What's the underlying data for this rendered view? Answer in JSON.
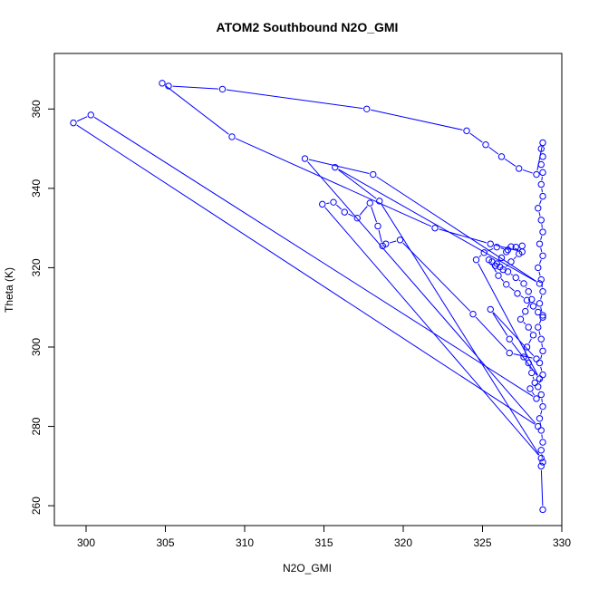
{
  "chart_data": {
    "type": "line",
    "title": "ATOM2 Southbound N2O_GMI",
    "xlabel": "N2O_GMI",
    "ylabel": "Theta (K)",
    "xlim": [
      298,
      330
    ],
    "ylim": [
      255,
      374
    ],
    "x_ticks": [
      300,
      305,
      310,
      315,
      320,
      325,
      330
    ],
    "y_ticks": [
      260,
      280,
      300,
      320,
      340,
      360
    ],
    "grid": false,
    "legend": "none",
    "series_color": "#0000ff",
    "marker": "open-circle",
    "series": [
      {
        "points": [
          [
            328.8,
            259
          ],
          [
            328.7,
            270
          ],
          [
            328.8,
            271
          ],
          [
            328.7,
            274
          ],
          [
            328.8,
            276
          ],
          [
            328.7,
            279
          ],
          [
            328.6,
            282
          ],
          [
            328.8,
            285
          ],
          [
            328.7,
            288
          ],
          [
            328.5,
            290
          ],
          [
            328.8,
            293
          ],
          [
            328.6,
            296
          ],
          [
            328.8,
            299
          ],
          [
            328.7,
            302
          ],
          [
            328.5,
            305
          ],
          [
            328.8,
            308
          ],
          [
            328.6,
            311
          ],
          [
            328.8,
            314
          ],
          [
            328.7,
            317
          ],
          [
            328.5,
            320
          ],
          [
            328.8,
            323
          ],
          [
            328.6,
            326
          ],
          [
            328.8,
            329
          ],
          [
            328.7,
            332
          ],
          [
            328.5,
            335
          ],
          [
            328.8,
            338
          ],
          [
            328.7,
            341
          ],
          [
            328.8,
            344
          ],
          [
            328.7,
            346
          ],
          [
            328.8,
            348
          ],
          [
            328.7,
            350
          ],
          [
            328.8,
            351.5
          ],
          [
            328.4,
            343.5
          ],
          [
            327.3,
            345
          ],
          [
            326.2,
            348
          ],
          [
            325.2,
            351
          ],
          [
            324,
            354.5
          ],
          [
            317.7,
            360
          ],
          [
            308.6,
            365
          ],
          [
            305.2,
            365.8
          ],
          [
            304.8,
            366.5
          ],
          [
            309.2,
            353
          ],
          [
            322,
            330
          ],
          [
            325.5,
            326
          ],
          [
            327.5,
            324
          ],
          [
            326.8,
            325.3
          ],
          [
            326.5,
            324
          ],
          [
            326.2,
            322.5
          ],
          [
            325.9,
            321
          ],
          [
            325.6,
            321.5
          ],
          [
            326.1,
            320.2
          ],
          [
            326.6,
            319
          ],
          [
            327.1,
            317.5
          ],
          [
            327.6,
            316
          ],
          [
            327.9,
            314
          ],
          [
            328.1,
            312
          ],
          [
            327.7,
            309
          ],
          [
            327.4,
            307
          ],
          [
            327.9,
            305
          ],
          [
            328.2,
            303
          ],
          [
            327.8,
            300
          ],
          [
            327.6,
            297.5
          ],
          [
            327.9,
            296
          ],
          [
            328.1,
            293.5
          ],
          [
            328.3,
            291
          ],
          [
            328,
            289.5
          ],
          [
            328.4,
            287
          ],
          [
            300.3,
            358.5
          ],
          [
            299.2,
            356.5
          ],
          [
            328.5,
            280
          ],
          [
            313.8,
            347.5
          ],
          [
            318.1,
            343.5
          ],
          [
            328.6,
            316
          ],
          [
            315.7,
            345.3
          ],
          [
            318.5,
            336.8
          ],
          [
            328.7,
            272
          ],
          [
            314.9,
            336
          ],
          [
            315.6,
            336.5
          ],
          [
            316.3,
            334
          ],
          [
            317.1,
            332.5
          ],
          [
            317.9,
            336.3
          ],
          [
            318.4,
            330.5
          ],
          [
            318.7,
            325.5
          ],
          [
            318.9,
            326
          ],
          [
            319.8,
            327
          ],
          [
            324.4,
            308.3
          ],
          [
            326.7,
            298.5
          ],
          [
            328.4,
            297
          ],
          [
            325.5,
            309.5
          ],
          [
            326.7,
            302
          ],
          [
            328.6,
            292
          ],
          [
            324.6,
            322
          ],
          [
            325.1,
            323.8
          ],
          [
            325.9,
            325.2
          ],
          [
            326.6,
            324.5
          ],
          [
            327.1,
            325.2
          ],
          [
            327.5,
            325.5
          ],
          [
            327.3,
            323.5
          ],
          [
            326.8,
            321.5
          ],
          [
            326.3,
            319.5
          ],
          [
            325.8,
            320.5
          ],
          [
            325.4,
            322
          ],
          [
            326,
            318
          ],
          [
            326.5,
            315.8
          ],
          [
            327.2,
            313.5
          ],
          [
            327.8,
            311.8
          ],
          [
            328.2,
            310.3
          ],
          [
            328.5,
            308.8
          ],
          [
            328.8,
            307.5
          ]
        ]
      }
    ]
  }
}
